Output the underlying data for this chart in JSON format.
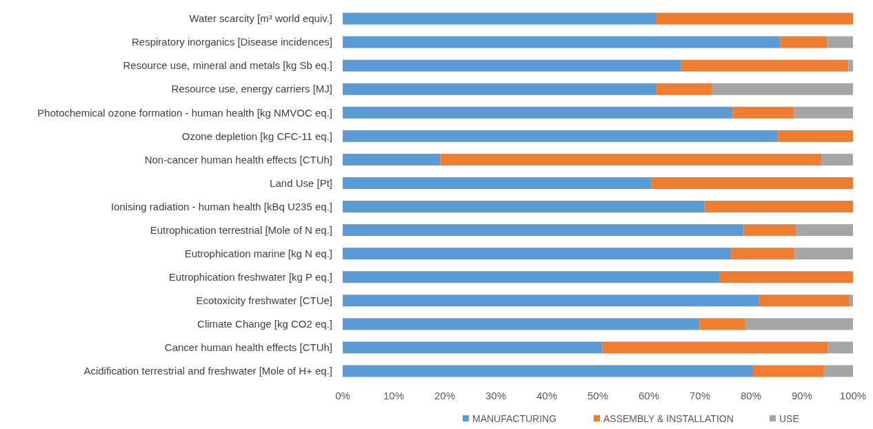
{
  "chart_data": {
    "type": "bar",
    "orientation": "horizontal",
    "stacked": true,
    "legend": "bottom",
    "grid": false,
    "categories": [
      "Water scarcity [m³ world equiv.]",
      "Respiratory inorganics [Disease incidences]",
      "Resource use, mineral and metals [kg Sb eq.]",
      "Resource use, energy carriers [MJ]",
      "Photochemical ozone formation - human health [kg NMVOC eq.]",
      "Ozone depletion [kg CFC-11 eq.]",
      "Non-cancer human health effects [CTUh]",
      "Land Use [Pt]",
      "Ionising radiation - human health [kBq U235 eq.]",
      "Eutrophication terrestrial [Mole of N eq.]",
      "Eutrophication marine [kg N eq.]",
      "Eutrophication freshwater [kg P eq.]",
      "Ecotoxicity freshwater [CTUe]",
      "Climate Change [kg CO2 eq.]",
      "Cancer human health effects [CTUh]",
      "Acidification terrestrial and freshwater [Mole of H+ eq.]"
    ],
    "series": [
      {
        "name": "MANUFACTURING",
        "color": "#5b9bd5",
        "values": [
          61.5,
          85.7,
          66.2,
          61.5,
          76.4,
          85.3,
          19.1,
          60.5,
          70.9,
          78.6,
          76.1,
          73.9,
          81.6,
          69.9,
          50.9,
          80.4
        ]
      },
      {
        "name": "ASSEMBLY & INSTALLATION",
        "color": "#ed7d31",
        "values": [
          38.5,
          9.2,
          32.9,
          10.9,
          12.0,
          14.7,
          74.7,
          39.5,
          29.1,
          10.2,
          12.5,
          26.1,
          17.7,
          9.0,
          44.2,
          13.9
        ]
      },
      {
        "name": "USE",
        "color": "#a5a5a5",
        "values": [
          0,
          5.1,
          0.9,
          27.6,
          11.6,
          0,
          6.2,
          0,
          0,
          11.2,
          11.4,
          0,
          0.7,
          21.1,
          4.9,
          5.7
        ]
      }
    ],
    "xlim": [
      0,
      100
    ],
    "xticks": [
      {
        "value": 0,
        "label": "0%"
      },
      {
        "value": 10,
        "label": "10%"
      },
      {
        "value": 20,
        "label": "20%"
      },
      {
        "value": 30,
        "label": "30%"
      },
      {
        "value": 40,
        "label": "40%"
      },
      {
        "value": 50,
        "label": "50%"
      },
      {
        "value": 60,
        "label": "60%"
      },
      {
        "value": 70,
        "label": "70%"
      },
      {
        "value": 80,
        "label": "80%"
      },
      {
        "value": 90,
        "label": "90%"
      },
      {
        "value": 100,
        "label": "100%"
      }
    ]
  }
}
